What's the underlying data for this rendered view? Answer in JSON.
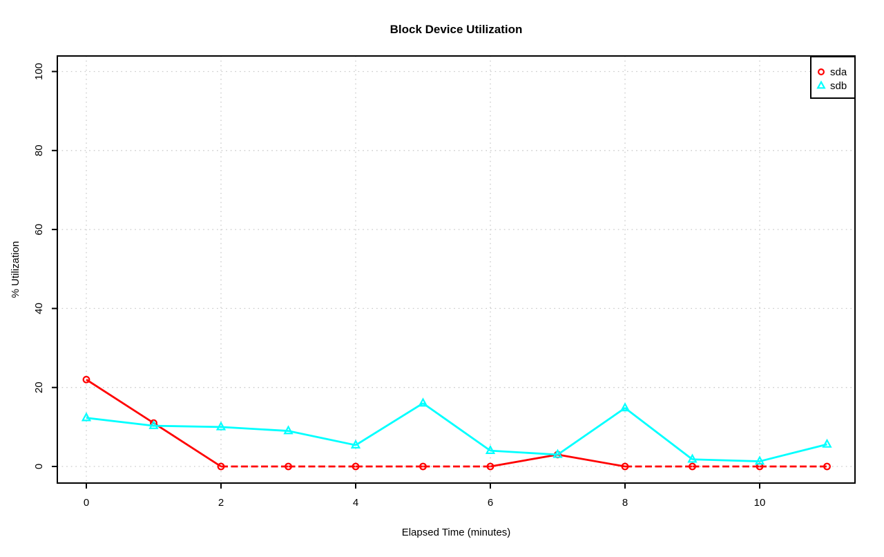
{
  "chart_data": {
    "type": "line",
    "title": "Block Device Utilization",
    "xlabel": "Elapsed Time (minutes)",
    "ylabel": "% Utilization",
    "x": [
      0,
      1,
      2,
      3,
      4,
      5,
      6,
      7,
      8,
      9,
      10,
      11
    ],
    "series": [
      {
        "name": "sda",
        "color": "#ff0000",
        "marker": "circle",
        "values": [
          22,
          11,
          0,
          0,
          0,
          0,
          0,
          3,
          0,
          0,
          0,
          0
        ],
        "zero_segments_dashed": true
      },
      {
        "name": "sdb",
        "color": "#00ffff",
        "marker": "triangle",
        "values": [
          12.3,
          10.3,
          10,
          9,
          5.4,
          16,
          4,
          3,
          14.8,
          1.8,
          1.3,
          5.6
        ],
        "zero_segments_dashed": false
      }
    ],
    "x_ticks": [
      0,
      2,
      4,
      6,
      8,
      10
    ],
    "y_ticks": [
      0,
      20,
      40,
      60,
      80,
      100
    ],
    "xlim": [
      0,
      11
    ],
    "ylim": [
      0,
      100
    ],
    "grid": true,
    "grid_color": "#c9c9c9",
    "axis_color": "#000000",
    "background_color": "#ffffff",
    "legend": {
      "position": "topright",
      "items": [
        {
          "label": "sda",
          "color": "#ff0000",
          "marker": "circle"
        },
        {
          "label": "sdb",
          "color": "#00ffff",
          "marker": "triangle"
        }
      ]
    }
  }
}
